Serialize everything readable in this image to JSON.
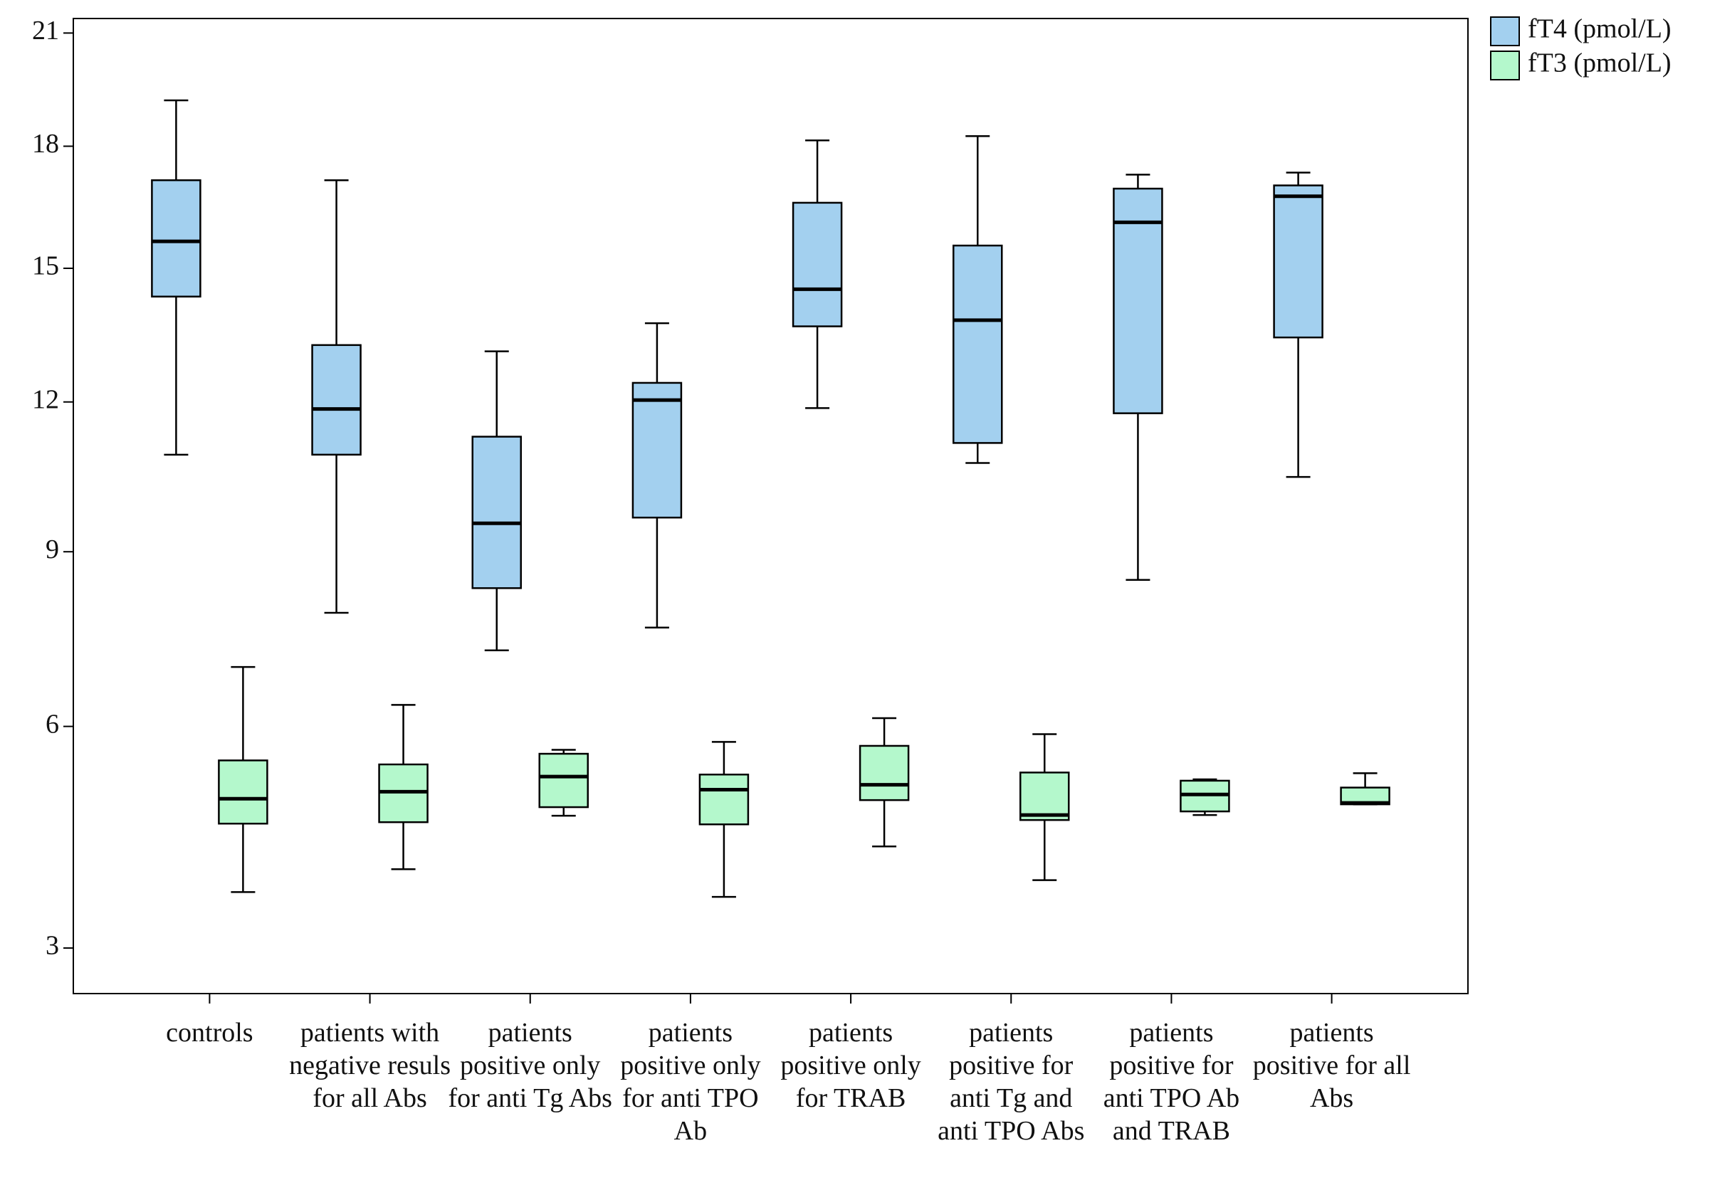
{
  "chart_data": {
    "type": "boxplot",
    "categories": [
      "controls",
      "patients with negative resuls for all Abs",
      "patients positive only for anti Tg Abs",
      "patients positive only for anti TPO Ab",
      "patients positive only for TRAB",
      "patients positive for anti Tg and anti TPO Abs",
      "patients positive for anti TPO Ab and TRAB",
      "patients positive for all Abs"
    ],
    "series": [
      {
        "name": "fT4 (pmol/L)",
        "color": "#a3d0ef",
        "values": [
          {
            "whislo": 10.9,
            "q1": 14.34,
            "med": 15.64,
            "q3": 17.14,
            "whishi": 19.19
          },
          {
            "whislo": 7.89,
            "q1": 10.9,
            "med": 11.85,
            "q3": 13.24,
            "whishi": 17.14
          },
          {
            "whislo": 7.24,
            "q1": 8.33,
            "med": 9.54,
            "q3": 11.27,
            "whishi": 13.1
          },
          {
            "whislo": 7.63,
            "q1": 9.65,
            "med": 12.04,
            "q3": 12.41,
            "whishi": 13.73
          },
          {
            "whislo": 11.87,
            "q1": 13.66,
            "med": 14.51,
            "q3": 16.58,
            "whishi": 18.15
          },
          {
            "whislo": 10.73,
            "q1": 11.14,
            "med": 13.8,
            "q3": 15.54,
            "whishi": 18.26
          },
          {
            "whislo": 8.48,
            "q1": 11.76,
            "med": 16.1,
            "q3": 16.93,
            "whishi": 17.28
          },
          {
            "whislo": 10.45,
            "q1": 13.41,
            "med": 16.74,
            "q3": 17.01,
            "whishi": 17.33
          }
        ]
      },
      {
        "name": "fT3 (pmol/L)",
        "color": "#b4f8cc",
        "values": [
          {
            "whislo": 3.67,
            "q1": 4.57,
            "med": 4.92,
            "q3": 5.48,
            "whishi": 6.96
          },
          {
            "whislo": 3.96,
            "q1": 4.59,
            "med": 5.02,
            "q3": 5.42,
            "whishi": 6.34
          },
          {
            "whislo": 4.68,
            "q1": 4.8,
            "med": 5.24,
            "q3": 5.58,
            "whishi": 5.64
          },
          {
            "whislo": 3.61,
            "q1": 4.56,
            "med": 5.05,
            "q3": 5.27,
            "whishi": 5.76
          },
          {
            "whislo": 4.26,
            "q1": 4.9,
            "med": 5.12,
            "q3": 5.7,
            "whishi": 6.13
          },
          {
            "whislo": 3.82,
            "q1": 4.62,
            "med": 4.69,
            "q3": 5.3,
            "whishi": 5.88
          },
          {
            "whislo": 4.69,
            "q1": 4.74,
            "med": 4.98,
            "q3": 5.18,
            "whishi": 5.2
          },
          {
            "whislo": 4.84,
            "q1": 4.84,
            "med": 4.86,
            "q3": 5.08,
            "whishi": 5.29
          }
        ]
      }
    ],
    "ylim": [
      2.5,
      21.4
    ],
    "yticks": [
      3,
      6,
      9,
      12,
      15,
      18,
      21
    ],
    "y_scale": {
      "type": "power",
      "exponent": 0.55
    },
    "legend": "outside-top-right"
  }
}
